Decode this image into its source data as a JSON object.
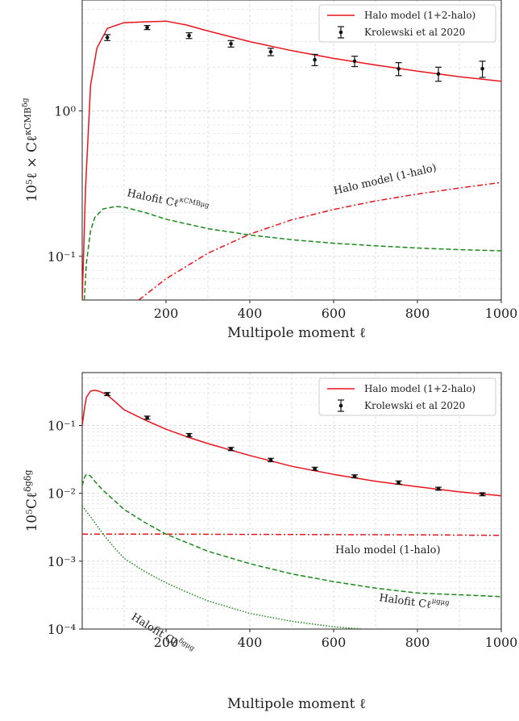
{
  "chart_data": [
    {
      "type": "line",
      "xlabel": "Multipole moment ℓ",
      "ylabel": "10⁵ℓ × Cℓ^(κCMB δg)",
      "xlim": [
        0,
        1000
      ],
      "ylim": [
        0.05,
        5.8
      ],
      "yscale": "log",
      "grid": true,
      "legend_position": "top-right",
      "xticks": [
        "200",
        "400",
        "600",
        "800",
        "1000"
      ],
      "yticks": [
        {
          "value": 1,
          "label": "10⁰"
        },
        {
          "value": 0.1,
          "label": "10⁻¹"
        }
      ],
      "legend": [
        "Halo model (1+2-halo)",
        "Krolewski et al 2020"
      ],
      "annotations": [
        "Halo model (1-halo)",
        "Halofit Cℓ^(κCMB μg)"
      ],
      "series": [
        {
          "name": "Halo model (1+2-halo)",
          "style": "solid",
          "color": "#e8141c",
          "x": [
            0,
            8,
            20,
            35,
            60,
            100,
            150,
            200,
            250,
            300,
            400,
            500,
            600,
            700,
            800,
            900,
            1000
          ],
          "y": [
            0.05,
            0.3,
            1.5,
            2.7,
            3.7,
            4.05,
            4.1,
            4.15,
            3.9,
            3.55,
            3.0,
            2.6,
            2.3,
            2.07,
            1.88,
            1.72,
            1.6
          ]
        },
        {
          "name": "Halo model (1-halo)",
          "style": "dashdot",
          "color": "#e8141c",
          "x": [
            135,
            200,
            300,
            400,
            500,
            600,
            700,
            800,
            900,
            1000
          ],
          "y": [
            0.05,
            0.07,
            0.105,
            0.142,
            0.178,
            0.21,
            0.24,
            0.268,
            0.295,
            0.322
          ]
        },
        {
          "name": "Halofit Cℓ^(κCMB μg)",
          "style": "dashed",
          "color": "#1a8a1a",
          "x": [
            5,
            10,
            20,
            30,
            50,
            80,
            100,
            150,
            200,
            300,
            400,
            500,
            600,
            700,
            800,
            900,
            1000
          ],
          "y": [
            0.05,
            0.09,
            0.15,
            0.185,
            0.212,
            0.22,
            0.218,
            0.2,
            0.18,
            0.155,
            0.14,
            0.13,
            0.123,
            0.118,
            0.114,
            0.111,
            0.109
          ]
        },
        {
          "name": "Krolewski et al 2020",
          "style": "points",
          "color": "#111111",
          "x": [
            60,
            155,
            255,
            355,
            450,
            555,
            650,
            755,
            850,
            955
          ],
          "y": [
            3.2,
            3.75,
            3.3,
            2.9,
            2.55,
            2.25,
            2.2,
            1.95,
            1.8,
            1.95
          ],
          "err": [
            0.15,
            0.12,
            0.15,
            0.15,
            0.15,
            0.2,
            0.18,
            0.2,
            0.2,
            0.25
          ]
        }
      ]
    },
    {
      "type": "line",
      "xlabel": "Multipole moment ℓ",
      "ylabel": "10⁵Cℓ^(δg δg)",
      "xlim": [
        0,
        1000
      ],
      "ylim": [
        0.0001,
        0.6
      ],
      "yscale": "log",
      "grid": true,
      "legend_position": "top-right",
      "xticks": [
        "200",
        "400",
        "600",
        "800",
        "1000"
      ],
      "yticks": [
        {
          "value": 0.1,
          "label": "10⁻¹"
        },
        {
          "value": 0.01,
          "label": "10⁻²"
        },
        {
          "value": 0.001,
          "label": "10⁻³"
        },
        {
          "value": 0.0001,
          "label": "10⁻⁴"
        }
      ],
      "legend": [
        "Halo model (1+2-halo)",
        "Krolewski et al 2020"
      ],
      "annotations": [
        "Halo model (1-halo)",
        "Halofit Cℓ^(μg μg)",
        "Halofit Cℓ^(δg μg)"
      ],
      "series": [
        {
          "name": "Halo model (1+2-halo)",
          "style": "solid",
          "color": "#e8141c",
          "x": [
            0,
            5,
            10,
            20,
            30,
            40,
            50,
            60,
            80,
            100,
            150,
            200,
            250,
            300,
            400,
            500,
            600,
            700,
            800,
            900,
            1000
          ],
          "y": [
            0.1,
            0.17,
            0.26,
            0.32,
            0.33,
            0.32,
            0.3,
            0.28,
            0.22,
            0.17,
            0.12,
            0.088,
            0.068,
            0.054,
            0.036,
            0.025,
            0.019,
            0.015,
            0.0125,
            0.0105,
            0.0092
          ]
        },
        {
          "name": "Halo model (1-halo)",
          "style": "dashdot",
          "color": "#e8141c",
          "x": [
            0,
            200,
            400,
            600,
            800,
            1000
          ],
          "y": [
            0.0025,
            0.0025,
            0.00248,
            0.00246,
            0.00244,
            0.0024
          ]
        },
        {
          "name": "Halofit Cℓ^(μg μg)",
          "style": "dashed",
          "color": "#1a8a1a",
          "x": [
            0,
            5,
            10,
            20,
            30,
            50,
            80,
            100,
            150,
            200,
            300,
            400,
            500,
            600,
            700,
            800,
            900,
            1000
          ],
          "y": [
            0.013,
            0.017,
            0.019,
            0.018,
            0.015,
            0.011,
            0.0075,
            0.0058,
            0.0037,
            0.0025,
            0.0014,
            0.00092,
            0.00065,
            0.0005,
            0.0004,
            0.00034,
            0.00032,
            0.0003
          ]
        },
        {
          "name": "Halofit Cℓ^(δg μg)",
          "style": "dotted",
          "color": "#1a8a1a",
          "x": [
            0,
            20,
            50,
            80,
            100,
            150,
            200,
            250,
            300,
            400,
            500,
            600,
            670
          ],
          "y": [
            0.0065,
            0.0045,
            0.0025,
            0.0015,
            0.0011,
            0.0007,
            0.00048,
            0.00035,
            0.00026,
            0.00017,
            0.00013,
            0.000108,
            0.0001
          ]
        },
        {
          "name": "Krolewski et al 2020",
          "style": "points",
          "color": "#111111",
          "x": [
            60,
            155,
            255,
            355,
            450,
            555,
            650,
            755,
            850,
            955
          ],
          "y": [
            0.29,
            0.13,
            0.072,
            0.045,
            0.031,
            0.023,
            0.0178,
            0.0144,
            0.0117,
            0.0097
          ],
          "err": [
            0.015,
            0.007,
            0.004,
            0.0025,
            0.0018,
            0.0012,
            0.0009,
            0.0008,
            0.0006,
            0.0005
          ]
        }
      ]
    }
  ]
}
